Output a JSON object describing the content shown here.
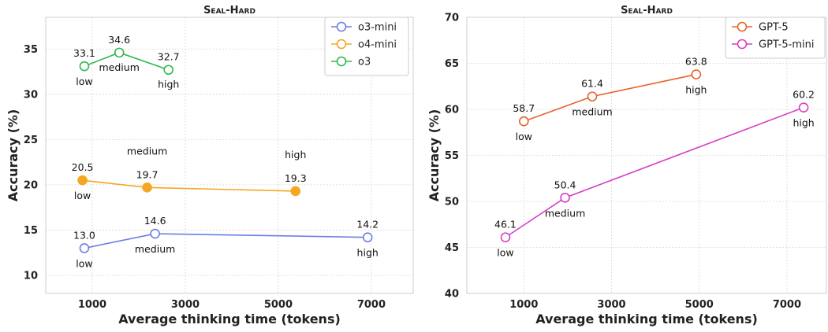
{
  "chart_data": [
    {
      "type": "line",
      "title": "Seal-Hard",
      "xlabel": "Average thinking time (tokens)",
      "ylabel": "Accuracy (%)",
      "xlim": [
        0,
        7900
      ],
      "ylim": [
        8,
        38.5
      ],
      "xticks": [
        1000,
        3000,
        5000,
        7000
      ],
      "xtick_labels": [
        "1000",
        "3000",
        "5000",
        "7000"
      ],
      "yticks": [
        10,
        15,
        20,
        25,
        30,
        35
      ],
      "ytick_labels": [
        "10",
        "15",
        "20",
        "25",
        "30",
        "35"
      ],
      "grid": true,
      "legend_position": "top-right",
      "series": [
        {
          "name": "o3-mini",
          "color": "#6b7fe3",
          "marker_fill": "#ffffff",
          "points": [
            {
              "x": 830,
              "y": 13.0,
              "value_label": "13.0",
              "effort": "low"
            },
            {
              "x": 2350,
              "y": 14.6,
              "value_label": "14.6",
              "effort": "medium"
            },
            {
              "x": 6920,
              "y": 14.2,
              "value_label": "14.2",
              "effort": "high"
            }
          ]
        },
        {
          "name": "o4-mini",
          "color": "#f5a623",
          "marker_fill": "#f5a623",
          "points": [
            {
              "x": 790,
              "y": 20.5,
              "value_label": "20.5",
              "effort": "low"
            },
            {
              "x": 2180,
              "y": 19.7,
              "value_label": "19.7",
              "effort": "medium"
            },
            {
              "x": 5370,
              "y": 19.3,
              "value_label": "19.3",
              "effort": "high"
            }
          ]
        },
        {
          "name": "o3",
          "color": "#2db84d",
          "marker_fill": "#ffffff",
          "points": [
            {
              "x": 830,
              "y": 33.1,
              "value_label": "33.1",
              "effort": "low"
            },
            {
              "x": 1580,
              "y": 34.6,
              "value_label": "34.6",
              "effort": "medium"
            },
            {
              "x": 2640,
              "y": 32.7,
              "value_label": "32.7",
              "effort": "high"
            }
          ]
        }
      ]
    },
    {
      "type": "line",
      "title": "Seal-Hard",
      "xlabel": "Average thinking time (tokens)",
      "ylabel": "Accuracy (%)",
      "xlim": [
        -300,
        7900
      ],
      "ylim": [
        40,
        70
      ],
      "xticks": [
        1000,
        3000,
        5000,
        7000
      ],
      "xtick_labels": [
        "1000",
        "3000",
        "5000",
        "7000"
      ],
      "yticks": [
        40,
        45,
        50,
        55,
        60,
        65,
        70
      ],
      "ytick_labels": [
        "40",
        "45",
        "50",
        "55",
        "60",
        "65",
        "70"
      ],
      "grid": true,
      "legend_position": "top-right",
      "series": [
        {
          "name": "GPT-5",
          "color": "#e8622c",
          "marker_fill": "#ffffff",
          "points": [
            {
              "x": 1000,
              "y": 58.7,
              "value_label": "58.7",
              "effort": "low"
            },
            {
              "x": 2560,
              "y": 61.4,
              "value_label": "61.4",
              "effort": "medium"
            },
            {
              "x": 4930,
              "y": 63.8,
              "value_label": "63.8",
              "effort": "high"
            }
          ]
        },
        {
          "name": "GPT-5-mini",
          "color": "#d63fc4",
          "marker_fill": "#ffffff",
          "points": [
            {
              "x": 580,
              "y": 46.1,
              "value_label": "46.1",
              "effort": "low"
            },
            {
              "x": 1940,
              "y": 50.4,
              "value_label": "50.4",
              "effort": "medium"
            },
            {
              "x": 7380,
              "y": 60.2,
              "value_label": "60.2",
              "effort": "high"
            }
          ]
        }
      ]
    }
  ]
}
